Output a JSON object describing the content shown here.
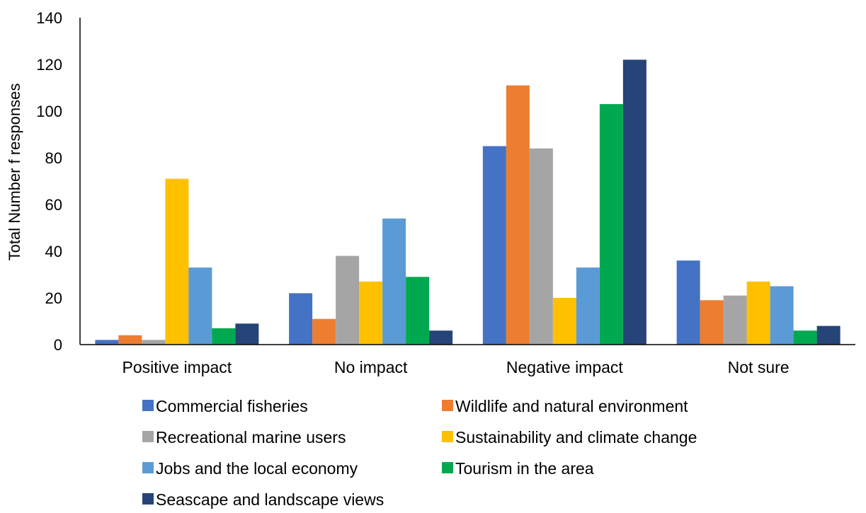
{
  "chart_data": {
    "type": "bar",
    "title": "",
    "xlabel": "",
    "ylabel": "Total Number f responses",
    "ylim": [
      0,
      140
    ],
    "ytick_values": [
      0,
      20,
      40,
      60,
      80,
      100,
      120,
      140
    ],
    "grid": false,
    "legend_position": "bottom",
    "categories": [
      "Positive impact",
      "No impact",
      "Negative impact",
      "Not sure"
    ],
    "series": [
      {
        "name": "Commercial fisheries",
        "color": "#4472C4",
        "values": [
          2,
          22,
          85,
          36
        ]
      },
      {
        "name": "Wildlife and natural environment",
        "color": "#ED7D31",
        "values": [
          4,
          11,
          111,
          19
        ]
      },
      {
        "name": "Recreational marine users",
        "color": "#A5A5A5",
        "values": [
          2,
          38,
          84,
          21
        ]
      },
      {
        "name": "Sustainability and climate change",
        "color": "#FFC000",
        "values": [
          71,
          27,
          20,
          27
        ]
      },
      {
        "name": "Jobs and the local economy",
        "color": "#5B9BD5",
        "values": [
          33,
          54,
          33,
          25
        ]
      },
      {
        "name": "Tourism in the area",
        "color": "#00A94F",
        "values": [
          7,
          29,
          103,
          6
        ]
      },
      {
        "name": "Seascape and landscape views",
        "color": "#264478",
        "values": [
          9,
          6,
          122,
          8
        ]
      }
    ]
  }
}
